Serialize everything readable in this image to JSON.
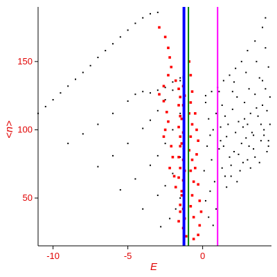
{
  "chart_data": {
    "type": "scatter",
    "xlabel": "E",
    "ylabel": "<n>",
    "xlim": [
      -11,
      4.6
    ],
    "ylim": [
      15,
      190
    ],
    "xticks": [
      -10,
      -5,
      0
    ],
    "yticks": [
      50,
      100,
      150
    ],
    "grid": false,
    "colors": {
      "axes": "#000000",
      "tick_labels": "#e00000",
      "black_series": "#000000",
      "red_series": "#ff0000",
      "blue_line": "#0000ff",
      "green_line": "#008000",
      "magenta_line": "#ff00ff"
    },
    "vertical_lines": [
      {
        "color": "blue",
        "x": -1.25
      },
      {
        "color": "green",
        "x": -0.95
      },
      {
        "color": "magenta",
        "x": 1.0
      }
    ],
    "series": [
      {
        "marker": "black-dots",
        "points": [
          [
            -11,
            112
          ],
          [
            -10.5,
            117
          ],
          [
            -10,
            122
          ],
          [
            -9.5,
            127
          ],
          [
            -9,
            132
          ],
          [
            -8.5,
            137
          ],
          [
            -8,
            142
          ],
          [
            -7.5,
            147
          ],
          [
            -7,
            153
          ],
          [
            -6.5,
            158
          ],
          [
            -6,
            163
          ],
          [
            -5.5,
            168
          ],
          [
            -5,
            173
          ],
          [
            -4.5,
            178
          ],
          [
            -4,
            182
          ],
          [
            -3.5,
            185
          ],
          [
            -3,
            186
          ]
        ]
      },
      {
        "marker": "black-dots",
        "points": [
          [
            -9,
            90
          ],
          [
            -8,
            97
          ],
          [
            -7,
            104
          ],
          [
            -6,
            112
          ],
          [
            -5,
            121
          ],
          [
            -4.5,
            126
          ],
          [
            -4,
            128
          ],
          [
            -3.5,
            127
          ],
          [
            -3,
            129
          ],
          [
            -2.5,
            131
          ],
          [
            -2,
            135
          ],
          [
            -1.5,
            138
          ],
          [
            -1.3,
            139
          ]
        ]
      },
      {
        "marker": "black-dots",
        "points": [
          [
            -7,
            73
          ],
          [
            -6,
            81
          ],
          [
            -5,
            90
          ],
          [
            -4,
            101
          ],
          [
            -3.5,
            107
          ],
          [
            -3,
            114
          ],
          [
            -2.5,
            122
          ],
          [
            -2,
            129
          ],
          [
            -1.5,
            136
          ],
          [
            -1.3,
            138
          ]
        ]
      },
      {
        "marker": "black-dots",
        "points": [
          [
            -5.5,
            56
          ],
          [
            -4.5,
            64
          ],
          [
            -3.5,
            74
          ],
          [
            -3,
            81
          ],
          [
            -2.5,
            90
          ],
          [
            -2,
            100
          ],
          [
            -1.5,
            112
          ],
          [
            -1.3,
            118
          ]
        ]
      },
      {
        "marker": "black-dots",
        "points": [
          [
            -4,
            42
          ],
          [
            -3,
            52
          ],
          [
            -2.5,
            59
          ],
          [
            -2,
            68
          ],
          [
            -1.5,
            80
          ],
          [
            -1.3,
            86
          ]
        ]
      },
      {
        "marker": "black-dots",
        "points": [
          [
            -2.8,
            29
          ],
          [
            -2.2,
            35
          ],
          [
            -1.8,
            42
          ],
          [
            -1.5,
            50
          ],
          [
            -1.3,
            56
          ]
        ]
      },
      {
        "marker": "red-squares",
        "points": [
          [
            -2.9,
            175
          ],
          [
            -2.5,
            168
          ],
          [
            -2.3,
            160
          ],
          [
            -2.2,
            153
          ],
          [
            -2.1,
            146
          ],
          [
            -2.3,
            140
          ],
          [
            -2.6,
            132
          ],
          [
            -2.9,
            126
          ],
          [
            -2.6,
            121
          ],
          [
            -2.4,
            113
          ],
          [
            -2.3,
            106
          ],
          [
            -2.5,
            100
          ],
          [
            -2.6,
            95
          ],
          [
            -1.8,
            136
          ],
          [
            -1.6,
            130
          ],
          [
            -1.5,
            124
          ],
          [
            -1.6,
            118
          ],
          [
            -1.5,
            110
          ],
          [
            -1.6,
            102
          ],
          [
            -1.5,
            95
          ],
          [
            -1.5,
            88
          ],
          [
            -1.6,
            80
          ],
          [
            -1.5,
            72
          ],
          [
            -1.6,
            65
          ],
          [
            -1.4,
            55
          ],
          [
            -1.5,
            45
          ],
          [
            -1.5,
            40
          ],
          [
            -1.6,
            33
          ],
          [
            -1.3,
            132
          ],
          [
            -1.2,
            125
          ],
          [
            -1.3,
            118
          ],
          [
            -1.4,
            108
          ],
          [
            -1.3,
            98
          ],
          [
            -1.4,
            90
          ],
          [
            -1.3,
            78
          ],
          [
            -1.2,
            70
          ],
          [
            -1.3,
            63
          ],
          [
            -1.4,
            52
          ],
          [
            -1.3,
            42
          ],
          [
            -1.2,
            35
          ],
          [
            -1.3,
            28
          ],
          [
            -1.1,
            22
          ],
          [
            -0.9,
            150
          ],
          [
            -0.8,
            140
          ],
          [
            -0.7,
            128
          ],
          [
            -0.8,
            120
          ],
          [
            -0.9,
            112
          ],
          [
            -0.7,
            104
          ],
          [
            -0.8,
            95
          ],
          [
            -0.9,
            85
          ],
          [
            -0.7,
            78
          ],
          [
            -0.8,
            70
          ],
          [
            -0.6,
            62
          ],
          [
            -0.7,
            52
          ],
          [
            -0.8,
            44
          ],
          [
            -0.6,
            36
          ],
          [
            -0.5,
            112
          ],
          [
            -0.4,
            100
          ],
          [
            -0.3,
            92
          ],
          [
            -0.4,
            82
          ],
          [
            -0.5,
            72
          ],
          [
            -0.3,
            60
          ],
          [
            -0.2,
            48
          ],
          [
            -0.1,
            40
          ],
          [
            -0.2,
            30
          ],
          [
            -0.3,
            23
          ],
          [
            -0.6,
            20
          ],
          [
            -1.8,
            58
          ],
          [
            -1.9,
            66
          ],
          [
            -2.0,
            80
          ],
          [
            -2.1,
            88
          ],
          [
            -2.2,
            72
          ]
        ]
      },
      {
        "marker": "black-dots",
        "points": [
          [
            0.2,
            120
          ],
          [
            0.4,
            108
          ],
          [
            0.5,
            96
          ],
          [
            0.3,
            88
          ],
          [
            0.6,
            78
          ],
          [
            0.1,
            70
          ],
          [
            0.8,
            62
          ],
          [
            0.5,
            55
          ],
          [
            0.2,
            48
          ],
          [
            0.9,
            42
          ],
          [
            0.4,
            36
          ],
          [
            0.7,
            30
          ],
          [
            1.1,
            128
          ],
          [
            1.3,
            118
          ],
          [
            1.5,
            110
          ],
          [
            1.2,
            102
          ],
          [
            1.6,
            95
          ],
          [
            1.4,
            88
          ],
          [
            1.8,
            80
          ],
          [
            1.3,
            72
          ],
          [
            1.9,
            66
          ],
          [
            1.6,
            58
          ],
          [
            2.1,
            135
          ],
          [
            2.3,
            124
          ],
          [
            2.0,
            115
          ],
          [
            2.4,
            106
          ],
          [
            2.2,
            98
          ],
          [
            2.6,
            90
          ],
          [
            2.1,
            84
          ],
          [
            2.7,
            76
          ],
          [
            2.5,
            70
          ],
          [
            2.3,
            62
          ],
          [
            2.9,
            142
          ],
          [
            3.1,
            130
          ],
          [
            2.8,
            120
          ],
          [
            3.2,
            112
          ],
          [
            3.0,
            104
          ],
          [
            3.4,
            96
          ],
          [
            3.1,
            88
          ],
          [
            3.5,
            80
          ],
          [
            3.2,
            72
          ],
          [
            3.6,
            150
          ],
          [
            3.8,
            138
          ],
          [
            3.5,
            126
          ],
          [
            4.0,
            118
          ],
          [
            3.7,
            110
          ],
          [
            4.1,
            100
          ],
          [
            3.9,
            92
          ],
          [
            4.3,
            84
          ],
          [
            3.8,
            76
          ],
          [
            4.2,
            160
          ],
          [
            4.4,
            146
          ],
          [
            4.0,
            136
          ],
          [
            4.5,
            124
          ],
          [
            4.3,
            114
          ],
          [
            4.5,
            104
          ],
          [
            4.1,
            96
          ],
          [
            4.4,
            88
          ],
          [
            4.0,
            175
          ],
          [
            3.5,
            165
          ],
          [
            3.0,
            158
          ],
          [
            2.6,
            150
          ],
          [
            2.2,
            145
          ],
          [
            1.8,
            140
          ],
          [
            1.4,
            136
          ],
          [
            1.0,
            131
          ],
          [
            0.6,
            128
          ],
          [
            0.2,
            125
          ],
          [
            0.9,
            112
          ],
          [
            1.7,
            104
          ],
          [
            2.8,
            108
          ],
          [
            3.3,
            98
          ],
          [
            3.9,
            104
          ],
          [
            4.2,
            130
          ],
          [
            2.4,
            82
          ],
          [
            1.9,
            74
          ],
          [
            3.4,
            86
          ],
          [
            4.4,
            92
          ],
          [
            2.9,
            94
          ],
          [
            1.5,
            66
          ],
          [
            4.2,
            182
          ],
          [
            2.7,
            102
          ],
          [
            1.2,
            92
          ],
          [
            0.7,
            100
          ],
          [
            3.6,
            116
          ],
          [
            2.0,
            128
          ],
          [
            1.1,
            86
          ],
          [
            3.0,
            78
          ]
        ]
      }
    ]
  }
}
